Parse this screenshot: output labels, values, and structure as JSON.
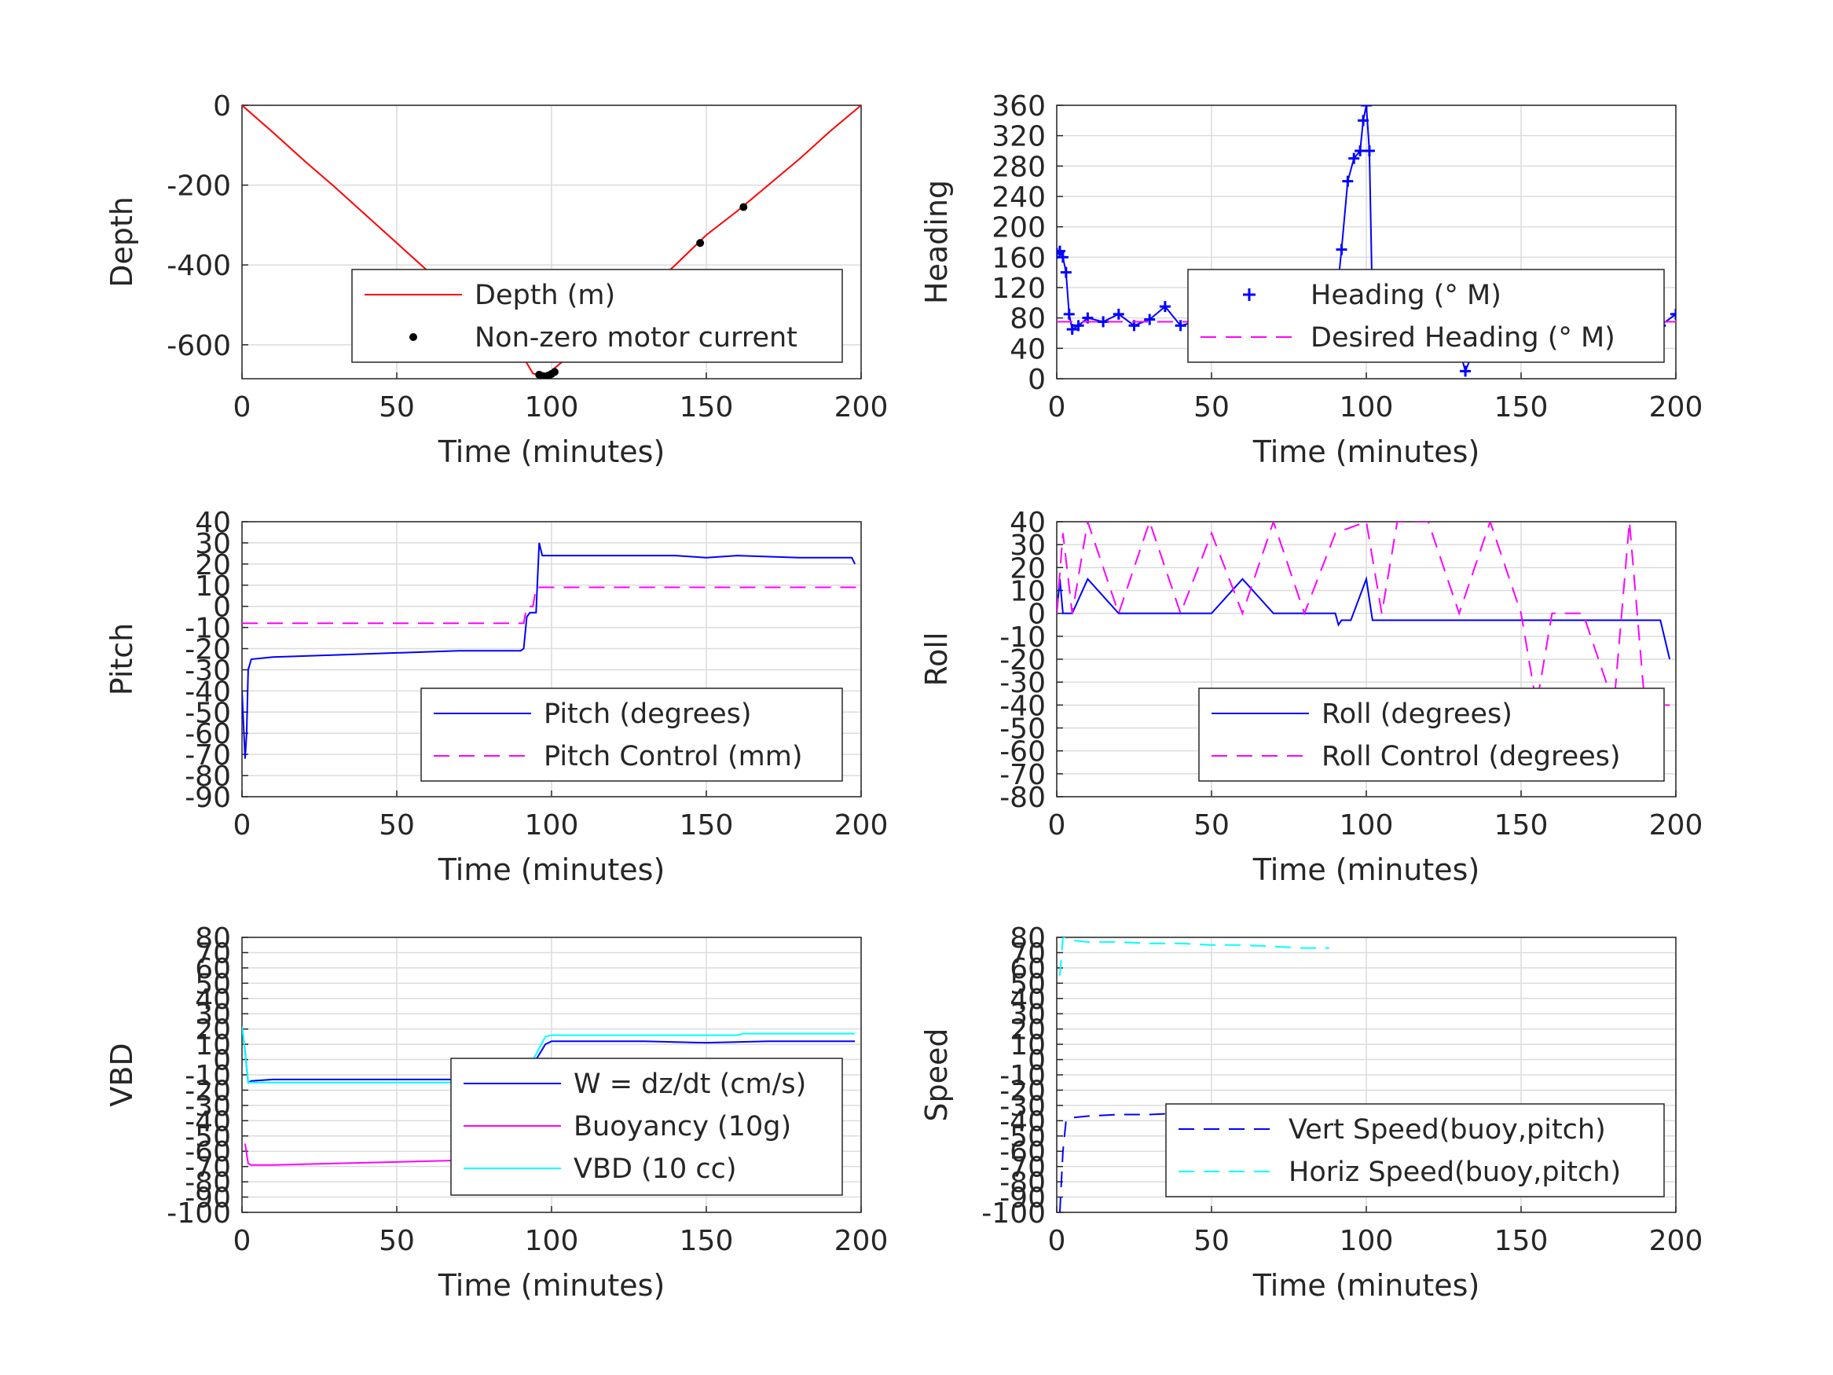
{
  "chart_data": [
    {
      "type": "line",
      "xlabel": "Time (minutes)",
      "ylabel": "Depth",
      "xlim": [
        0,
        200
      ],
      "ylim": [
        -685,
        0
      ],
      "xticks": [
        0,
        50,
        100,
        150,
        200
      ],
      "yticks": [
        0,
        -200,
        -400,
        -600
      ],
      "legend_position": "lower-right",
      "series": [
        {
          "name": "Depth (m)",
          "color": "#ff0000",
          "style": "solid",
          "x": [
            0,
            10,
            20,
            30,
            40,
            50,
            60,
            70,
            80,
            90,
            94,
            98,
            100,
            110,
            120,
            130,
            140,
            150,
            160,
            170,
            180,
            190,
            200
          ],
          "y": [
            0,
            -68,
            -138,
            -205,
            -275,
            -345,
            -415,
            -485,
            -550,
            -620,
            -672,
            -680,
            -665,
            -600,
            -535,
            -470,
            -400,
            -325,
            -265,
            -200,
            -135,
            -65,
            0
          ]
        },
        {
          "name": "Non-zero motor current",
          "color": "#000000",
          "style": "dots",
          "x": [
            96,
            97,
            98,
            99,
            100,
            101,
            148,
            162
          ],
          "y": [
            -675,
            -678,
            -679,
            -677,
            -673,
            -668,
            -345,
            -255
          ]
        }
      ]
    },
    {
      "type": "line",
      "xlabel": "Time (minutes)",
      "ylabel": "Heading",
      "xlim": [
        0,
        200
      ],
      "ylim": [
        0,
        360
      ],
      "xticks": [
        0,
        50,
        100,
        150,
        200
      ],
      "yticks": [
        0,
        40,
        80,
        120,
        160,
        200,
        240,
        280,
        320,
        360
      ],
      "legend_position": "center-right",
      "series": [
        {
          "name": "Heading (° M)",
          "color": "#0000ff",
          "style": "plus",
          "x": [
            0,
            1,
            2,
            3,
            4,
            5,
            7,
            10,
            15,
            20,
            25,
            30,
            35,
            40,
            45,
            50,
            55,
            60,
            65,
            70,
            75,
            80,
            85,
            88,
            90,
            92,
            94,
            96,
            98,
            99,
            100,
            101,
            102,
            104,
            106,
            110,
            115,
            120,
            125,
            128,
            130,
            132,
            134,
            136,
            140,
            145,
            150,
            155,
            160,
            165,
            170,
            175,
            180,
            185,
            190,
            195,
            200
          ],
          "y": [
            165,
            168,
            160,
            140,
            85,
            65,
            70,
            80,
            75,
            85,
            70,
            78,
            95,
            70,
            75,
            90,
            72,
            78,
            82,
            76,
            72,
            78,
            80,
            75,
            90,
            170,
            260,
            290,
            300,
            340,
            360,
            300,
            90,
            80,
            78,
            85,
            70,
            90,
            75,
            60,
            40,
            10,
            30,
            80,
            90,
            70,
            85,
            75,
            90,
            80,
            70,
            85,
            75,
            90,
            80,
            70,
            85
          ]
        },
        {
          "name": "Desired Heading (° M)",
          "color": "#ff00ff",
          "style": "dashed",
          "x": [
            0,
            200
          ],
          "y": [
            75,
            75
          ]
        }
      ]
    },
    {
      "type": "line",
      "xlabel": "Time (minutes)",
      "ylabel": "Pitch",
      "xlim": [
        0,
        200
      ],
      "ylim": [
        -90,
        40
      ],
      "xticks": [
        0,
        50,
        100,
        150,
        200
      ],
      "yticks": [
        40,
        30,
        20,
        10,
        0,
        -10,
        -20,
        -30,
        -40,
        -50,
        -60,
        -70,
        -80,
        -90
      ],
      "legend_position": "lower-right",
      "series": [
        {
          "name": "Pitch (degrees)",
          "color": "#0000ff",
          "style": "solid",
          "x": [
            0,
            1,
            1.5,
            2,
            3,
            10,
            30,
            50,
            70,
            90,
            91,
            92,
            93,
            95,
            96,
            97,
            100,
            120,
            140,
            150,
            160,
            180,
            197,
            198
          ],
          "y": [
            -40,
            -72,
            -60,
            -30,
            -25,
            -24,
            -23,
            -22,
            -21,
            -21,
            -20,
            -5,
            -3,
            -3,
            30,
            24,
            24,
            24,
            24,
            23,
            24,
            23,
            23,
            20
          ]
        },
        {
          "name": "Pitch Control (mm)",
          "color": "#ff00ff",
          "style": "dashed",
          "x": [
            0,
            91,
            92,
            94,
            95,
            200
          ],
          "y": [
            -8,
            -8,
            0,
            0,
            9,
            9
          ]
        }
      ]
    },
    {
      "type": "line",
      "xlabel": "Time (minutes)",
      "ylabel": "Roll",
      "xlim": [
        0,
        200
      ],
      "ylim": [
        -80,
        40
      ],
      "xticks": [
        0,
        50,
        100,
        150,
        200
      ],
      "yticks": [
        40,
        30,
        20,
        10,
        0,
        -10,
        -20,
        -30,
        -40,
        -50,
        -60,
        -70,
        -80
      ],
      "legend_position": "lower-right",
      "series": [
        {
          "name": "Roll (degrees)",
          "color": "#0000ff",
          "style": "solid",
          "x": [
            0,
            1,
            2,
            5,
            10,
            20,
            30,
            40,
            50,
            60,
            70,
            80,
            90,
            91,
            92,
            95,
            100,
            102,
            105,
            110,
            120,
            130,
            140,
            150,
            160,
            170,
            180,
            190,
            195,
            198
          ],
          "y": [
            0,
            15,
            0,
            0,
            15,
            0,
            0,
            0,
            0,
            15,
            0,
            0,
            0,
            -5,
            -3,
            -3,
            15,
            -3,
            -3,
            -3,
            -3,
            -3,
            -3,
            -3,
            -3,
            -3,
            -3,
            -3,
            -3,
            -20
          ]
        },
        {
          "name": "Roll Control (degrees)",
          "color": "#ff00ff",
          "style": "dashed",
          "x": [
            0,
            2,
            5,
            10,
            20,
            30,
            40,
            50,
            60,
            70,
            80,
            90,
            100,
            105,
            110,
            120,
            130,
            140,
            150,
            155,
            160,
            170,
            180,
            185,
            190,
            198
          ],
          "y": [
            0,
            35,
            0,
            40,
            0,
            40,
            0,
            35,
            0,
            40,
            0,
            35,
            40,
            0,
            40,
            40,
            0,
            40,
            0,
            -40,
            0,
            0,
            -40,
            40,
            -40,
            -40
          ]
        }
      ]
    },
    {
      "type": "line",
      "xlabel": "Time (minutes)",
      "ylabel": "VBD",
      "xlim": [
        0,
        200
      ],
      "ylim": [
        -100,
        80
      ],
      "xticks": [
        0,
        50,
        100,
        150,
        200
      ],
      "yticks": [
        80,
        70,
        60,
        50,
        40,
        30,
        20,
        10,
        0,
        -10,
        -20,
        -30,
        -40,
        -50,
        -60,
        -70,
        -80,
        -90,
        -100
      ],
      "ytick_labels": [
        "80",
        "70",
        "60",
        "50",
        "40",
        "30",
        "20",
        "10",
        "0",
        "-10",
        "-20",
        "-30",
        "-40",
        "-50",
        "-60",
        "-70",
        "-80",
        "-90",
        "-100"
      ],
      "legend_position": "lower-right",
      "series": [
        {
          "name": "W = dz/dt (cm/s)",
          "color": "#0000ff",
          "style": "solid",
          "x": [
            0,
            1,
            2,
            3,
            10,
            30,
            50,
            70,
            90,
            92,
            95,
            98,
            100,
            110,
            130,
            150,
            170,
            190,
            198
          ],
          "y": [
            22,
            5,
            -15,
            -14,
            -13,
            -13,
            -13,
            -13,
            -11,
            -8,
            0,
            10,
            12,
            12,
            12,
            11,
            12,
            12,
            12
          ]
        },
        {
          "name": "Buoyancy (10g)",
          "color": "#ff00ff",
          "style": "solid",
          "x": [
            1,
            2,
            3,
            10,
            30,
            50,
            70,
            90
          ],
          "y": [
            -55,
            -68,
            -69,
            -69,
            -68,
            -67,
            -66,
            -65
          ]
        },
        {
          "name": "VBD (10 cc)",
          "color": "#00ffff",
          "style": "solid",
          "x": [
            0,
            1,
            2,
            3,
            10,
            90,
            92,
            98,
            100,
            160,
            162,
            198
          ],
          "y": [
            22,
            5,
            -15,
            -15,
            -15,
            -15,
            -8,
            15,
            16,
            16,
            17,
            17
          ]
        }
      ]
    },
    {
      "type": "line",
      "xlabel": "Time (minutes)",
      "ylabel": "Speed",
      "xlim": [
        0,
        200
      ],
      "ylim": [
        -100,
        80
      ],
      "xticks": [
        0,
        50,
        100,
        150,
        200
      ],
      "yticks": [
        80,
        70,
        60,
        50,
        40,
        30,
        20,
        10,
        0,
        -10,
        -20,
        -30,
        -40,
        -50,
        -60,
        -70,
        -80,
        -90,
        -100
      ],
      "legend_position": "lower-right",
      "series": [
        {
          "name": "Vert Speed(buoy,pitch)",
          "color": "#0000ff",
          "style": "dashed",
          "x": [
            1,
            2,
            3,
            5,
            10,
            20,
            30,
            40,
            50,
            60,
            70,
            80,
            88
          ],
          "y": [
            -100,
            -60,
            -40,
            -38,
            -37,
            -36,
            -36,
            -35,
            -35,
            -35,
            -34,
            -34,
            -34
          ]
        },
        {
          "name": "Horiz Speed(buoy,pitch)",
          "color": "#00ffff",
          "style": "dashed",
          "x": [
            1,
            2,
            3,
            5,
            10,
            20,
            30,
            40,
            50,
            60,
            70,
            80,
            88
          ],
          "y": [
            55,
            80,
            80,
            78,
            77,
            77,
            76,
            76,
            75,
            75,
            74,
            73,
            73
          ]
        }
      ]
    }
  ]
}
